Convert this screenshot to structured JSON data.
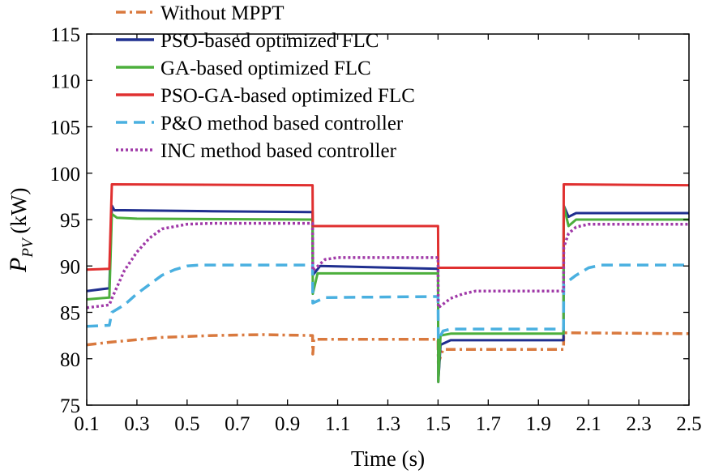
{
  "chart_data": {
    "type": "line",
    "title": "",
    "xlabel": "Time (s)",
    "ylabel_main": "P",
    "ylabel_sub": "PV",
    "ylabel_unit": "(kW)",
    "xlim": [
      0.1,
      2.5
    ],
    "ylim": [
      75,
      115
    ],
    "xticks": [
      "0.1",
      "0.3",
      "0.5",
      "0.7",
      "0.9",
      "1.1",
      "1.3",
      "1.5",
      "1.7",
      "1.9",
      "2.1",
      "2.3",
      "2.5"
    ],
    "yticks": [
      "75",
      "80",
      "85",
      "90",
      "95",
      "100",
      "105",
      "110",
      "115"
    ],
    "grid": false,
    "legend_position": "top",
    "series": [
      {
        "name": "Without MPPT",
        "color": "#d9793e",
        "style": "dashdot",
        "x": [
          0.1,
          0.2,
          0.4,
          0.6,
          0.8,
          1.0,
          1.001,
          1.005,
          1.5,
          1.501,
          1.52,
          2.0,
          2.001,
          2.5
        ],
        "y": [
          81.5,
          81.8,
          82.3,
          82.5,
          82.6,
          82.5,
          80.5,
          82.1,
          82.1,
          79.5,
          81.0,
          81.0,
          82.8,
          82.7
        ]
      },
      {
        "name": "PSO-based optimized FLC",
        "color": "#1f2f8f",
        "style": "solid",
        "x": [
          0.1,
          0.19,
          0.2,
          0.21,
          0.25,
          0.6,
          1.0,
          1.001,
          1.03,
          1.5,
          1.501,
          1.51,
          1.55,
          2.0,
          2.001,
          2.02,
          2.05,
          2.5
        ],
        "y": [
          87.3,
          87.6,
          96.5,
          96.0,
          96.0,
          95.9,
          95.8,
          89.0,
          90.0,
          89.7,
          77.5,
          81.5,
          82.0,
          82.0,
          96.5,
          95.3,
          95.7,
          95.7
        ]
      },
      {
        "name": "GA-based optimized FLC",
        "color": "#4caf3c",
        "style": "solid",
        "x": [
          0.1,
          0.19,
          0.2,
          0.22,
          0.3,
          1.0,
          1.001,
          1.02,
          1.5,
          1.501,
          1.51,
          1.55,
          2.0,
          2.001,
          2.02,
          2.05,
          2.5
        ],
        "y": [
          86.4,
          86.6,
          95.6,
          95.2,
          95.1,
          95.0,
          87.0,
          89.2,
          89.2,
          77.5,
          82.5,
          82.7,
          82.7,
          96.5,
          94.3,
          95.0,
          95.0
        ]
      },
      {
        "name": "PSO-GA-based optimized FLC",
        "color": "#e03030",
        "style": "solid",
        "x": [
          0.1,
          0.19,
          0.2,
          1.0,
          1.001,
          1.5,
          1.501,
          2.0,
          2.001,
          2.5
        ],
        "y": [
          89.6,
          89.7,
          98.8,
          98.7,
          94.3,
          94.3,
          89.8,
          89.8,
          98.8,
          98.7
        ]
      },
      {
        "name": "P&O method based controller",
        "color": "#4ab0e0",
        "style": "dashed",
        "x": [
          0.1,
          0.19,
          0.2,
          0.25,
          0.3,
          0.35,
          0.4,
          0.45,
          0.5,
          0.55,
          1.0,
          1.001,
          1.05,
          1.5,
          1.501,
          1.52,
          1.55,
          2.0,
          2.001,
          2.05,
          2.1,
          2.15,
          2.5
        ],
        "y": [
          83.5,
          83.6,
          85.0,
          85.8,
          87.0,
          88.0,
          89.0,
          89.6,
          90.0,
          90.1,
          90.1,
          86.0,
          86.6,
          86.7,
          82.0,
          83.0,
          83.2,
          83.2,
          88.0,
          89.0,
          89.8,
          90.1,
          90.1
        ]
      },
      {
        "name": "INC method based controller",
        "color": "#a03aa8",
        "style": "dotted",
        "x": [
          0.1,
          0.19,
          0.2,
          0.25,
          0.3,
          0.35,
          0.4,
          0.5,
          0.6,
          1.0,
          1.001,
          1.05,
          1.1,
          1.5,
          1.501,
          1.55,
          1.6,
          1.65,
          2.0,
          2.001,
          2.02,
          2.05,
          2.1,
          2.5
        ],
        "y": [
          85.5,
          85.8,
          86.5,
          89.5,
          91.5,
          93.0,
          94.0,
          94.5,
          94.6,
          94.6,
          89.5,
          90.7,
          90.9,
          90.9,
          85.5,
          86.5,
          87.0,
          87.3,
          87.3,
          92.0,
          93.5,
          94.2,
          94.5,
          94.5
        ]
      }
    ]
  }
}
